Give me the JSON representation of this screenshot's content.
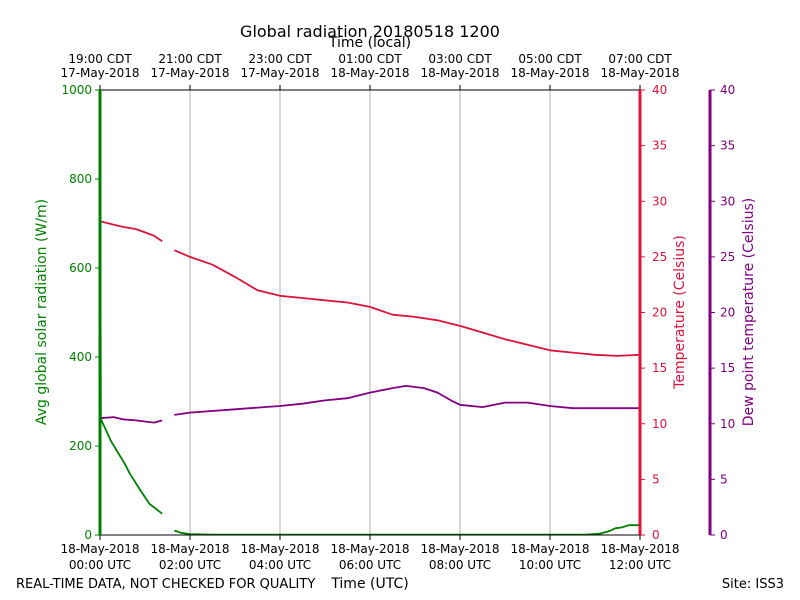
{
  "chart_data": {
    "type": "line",
    "title": "Global radiation 20180518 1200",
    "top_axis_label": "Time (local)",
    "xlabel": "Time (UTC)",
    "ylabel_left": "Avg global solar radiation (W/m)",
    "ylabel_right1": "Temperature (Celsius)",
    "ylabel_right2": "Dew point temperature (Celsius)",
    "footer_left": "REAL-TIME DATA, NOT CHECKED FOR QUALITY",
    "footer_right": "Site: ISS3",
    "x_range_hours": [
      0,
      12
    ],
    "ylim_radiation": [
      0,
      1000
    ],
    "ylim_temperature": [
      0,
      40
    ],
    "ylim_dewpoint": [
      0,
      40
    ],
    "grid": "vertical",
    "bottom_ticks": [
      {
        "hour": 0,
        "line1": "18-May-2018",
        "line2": "00:00 UTC"
      },
      {
        "hour": 2,
        "line1": "18-May-2018",
        "line2": "02:00 UTC"
      },
      {
        "hour": 4,
        "line1": "18-May-2018",
        "line2": "04:00 UTC"
      },
      {
        "hour": 6,
        "line1": "18-May-2018",
        "line2": "06:00 UTC"
      },
      {
        "hour": 8,
        "line1": "18-May-2018",
        "line2": "08:00 UTC"
      },
      {
        "hour": 10,
        "line1": "18-May-2018",
        "line2": "10:00 UTC"
      },
      {
        "hour": 12,
        "line1": "18-May-2018",
        "line2": "12:00 UTC"
      }
    ],
    "top_ticks": [
      {
        "hour": 0,
        "line1": "19:00 CDT",
        "line2": "17-May-2018"
      },
      {
        "hour": 2,
        "line1": "21:00 CDT",
        "line2": "17-May-2018"
      },
      {
        "hour": 4,
        "line1": "23:00 CDT",
        "line2": "17-May-2018"
      },
      {
        "hour": 6,
        "line1": "01:00 CDT",
        "line2": "18-May-2018"
      },
      {
        "hour": 8,
        "line1": "03:00 CDT",
        "line2": "18-May-2018"
      },
      {
        "hour": 10,
        "line1": "05:00 CDT",
        "line2": "18-May-2018"
      },
      {
        "hour": 12,
        "line1": "07:00 CDT",
        "line2": "18-May-2018"
      }
    ],
    "radiation_ticks": [
      0,
      200,
      400,
      600,
      800,
      1000
    ],
    "temperature_ticks": [
      0,
      5,
      10,
      15,
      20,
      25,
      30,
      35,
      40
    ],
    "dewpoint_ticks": [
      0,
      5,
      10,
      15,
      20,
      25,
      30,
      35,
      40
    ],
    "series": [
      {
        "name": "Avg global solar radiation",
        "axis": "radiation",
        "color": "#008000",
        "segments": [
          [
            [
              0,
              1000
            ],
            [
              0.02,
              260
            ],
            [
              0.25,
              210
            ],
            [
              0.55,
              160
            ],
            [
              0.65,
              140
            ],
            [
              0.9,
              100
            ],
            [
              1.1,
              70
            ],
            [
              1.38,
              48
            ]
          ],
          [
            [
              1.65,
              10
            ],
            [
              1.8,
              5
            ],
            [
              2.0,
              2
            ],
            [
              2.5,
              1
            ],
            [
              4,
              1
            ],
            [
              6,
              1
            ],
            [
              8,
              1
            ],
            [
              10,
              1
            ],
            [
              10.8,
              1
            ],
            [
              11.1,
              3
            ],
            [
              11.3,
              8
            ],
            [
              11.45,
              15
            ],
            [
              11.6,
              17
            ],
            [
              11.75,
              22
            ],
            [
              12,
              22
            ]
          ]
        ]
      },
      {
        "name": "Temperature",
        "axis": "temperature",
        "color": "#dc143c",
        "segments": [
          [
            [
              0,
              28.2
            ],
            [
              0.3,
              27.9
            ],
            [
              0.5,
              27.7
            ],
            [
              0.8,
              27.5
            ],
            [
              1.0,
              27.2
            ],
            [
              1.2,
              26.9
            ],
            [
              1.38,
              26.4
            ]
          ],
          [
            [
              1.65,
              25.6
            ],
            [
              2.0,
              25.0
            ],
            [
              2.5,
              24.3
            ],
            [
              3.0,
              23.2
            ],
            [
              3.5,
              22.0
            ],
            [
              4.0,
              21.5
            ],
            [
              4.5,
              21.3
            ],
            [
              5.0,
              21.1
            ],
            [
              5.5,
              20.9
            ],
            [
              6.0,
              20.5
            ],
            [
              6.5,
              19.8
            ],
            [
              7.0,
              19.6
            ],
            [
              7.5,
              19.3
            ],
            [
              8.0,
              18.8
            ],
            [
              8.5,
              18.2
            ],
            [
              9.0,
              17.6
            ],
            [
              9.5,
              17.1
            ],
            [
              10.0,
              16.6
            ],
            [
              10.5,
              16.4
            ],
            [
              11.0,
              16.2
            ],
            [
              11.5,
              16.1
            ],
            [
              12.0,
              16.2
            ]
          ]
        ]
      },
      {
        "name": "Dew point temperature",
        "axis": "dewpoint",
        "color": "#800080",
        "segments": [
          [
            [
              0,
              10.5
            ],
            [
              0.3,
              10.6
            ],
            [
              0.5,
              10.4
            ],
            [
              0.8,
              10.3
            ],
            [
              1.2,
              10.1
            ],
            [
              1.38,
              10.3
            ]
          ],
          [
            [
              1.65,
              10.8
            ],
            [
              2.0,
              11.0
            ],
            [
              3.0,
              11.3
            ],
            [
              4.0,
              11.6
            ],
            [
              4.5,
              11.8
            ],
            [
              5.0,
              12.1
            ],
            [
              5.5,
              12.3
            ],
            [
              6.0,
              12.8
            ],
            [
              6.5,
              13.2
            ],
            [
              6.8,
              13.4
            ],
            [
              7.2,
              13.2
            ],
            [
              7.5,
              12.8
            ],
            [
              7.8,
              12.1
            ],
            [
              8.0,
              11.7
            ],
            [
              8.5,
              11.5
            ],
            [
              9.0,
              11.9
            ],
            [
              9.5,
              11.9
            ],
            [
              10.0,
              11.6
            ],
            [
              10.5,
              11.4
            ],
            [
              11.0,
              11.4
            ],
            [
              11.5,
              11.4
            ],
            [
              12.0,
              11.4
            ]
          ]
        ]
      }
    ]
  }
}
